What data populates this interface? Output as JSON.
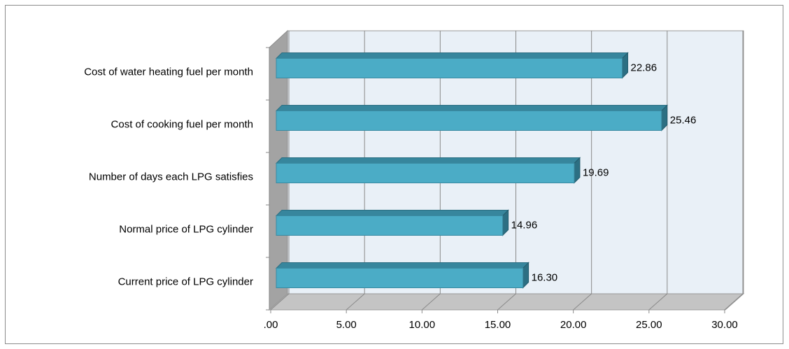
{
  "chart_data": {
    "type": "bar",
    "orientation": "horizontal",
    "three_d": true,
    "categories": [
      "Cost of water heating fuel per month",
      "Cost of cooking fuel per month",
      "Number of  days  each LPG satisfies",
      "Normal price of LPG cylinder",
      "Current price of LPG cylinder"
    ],
    "values": [
      22.86,
      25.46,
      19.69,
      14.96,
      16.3
    ],
    "value_labels": [
      "22.86",
      "25.46",
      "19.69",
      "14.96",
      "16.30"
    ],
    "color": "#4bacc6",
    "xlim": [
      0,
      30
    ],
    "xticks": [
      {
        "value": 0,
        "label": ".00"
      },
      {
        "value": 5,
        "label": "5.00"
      },
      {
        "value": 10,
        "label": "10.00"
      },
      {
        "value": 15,
        "label": "15.00"
      },
      {
        "value": 20,
        "label": "20.00"
      },
      {
        "value": 25,
        "label": "25.00"
      },
      {
        "value": 30,
        "label": "30.00"
      }
    ],
    "grid": true
  }
}
